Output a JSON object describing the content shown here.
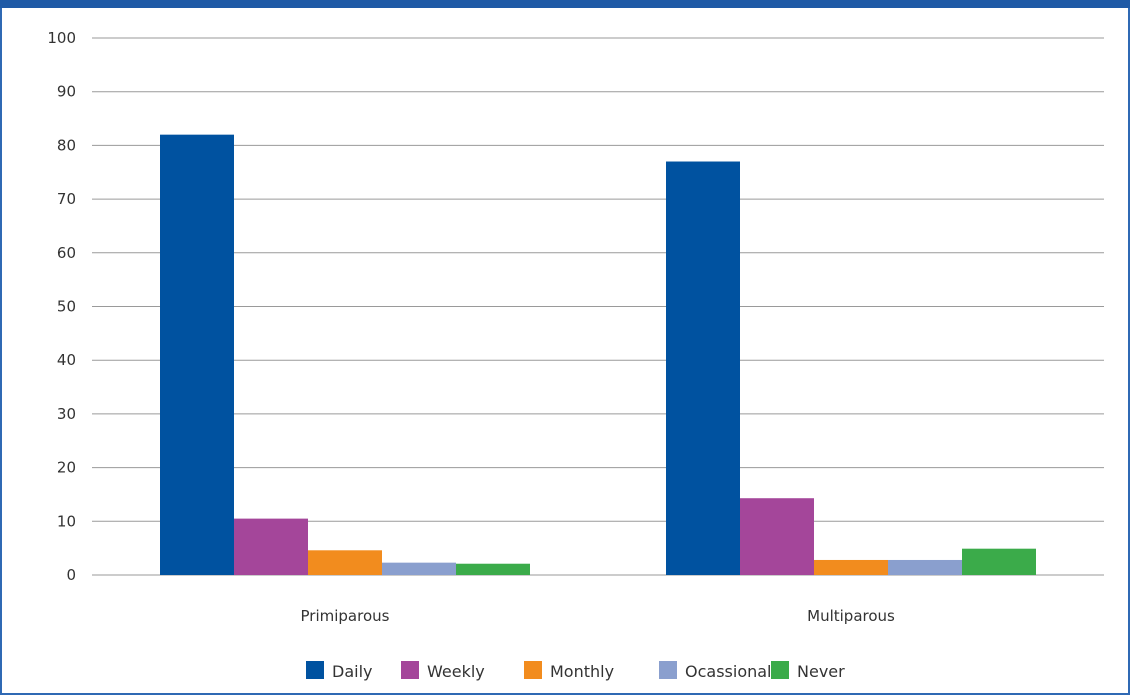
{
  "chart_data": {
    "type": "bar",
    "categories": [
      "Primiparous",
      "Multiparous"
    ],
    "series": [
      {
        "name": "Daily",
        "color": "#0052a0",
        "values": [
          82,
          77
        ]
      },
      {
        "name": "Weekly",
        "color": "#a4469a",
        "values": [
          10.5,
          14.3
        ]
      },
      {
        "name": "Monthly",
        "color": "#f28c1e",
        "values": [
          4.6,
          2.8
        ]
      },
      {
        "name": "Ocassional",
        "color": "#8a9fce",
        "values": [
          2.3,
          2.8
        ]
      },
      {
        "name": "Never",
        "color": "#3bab4a",
        "values": [
          2.1,
          4.9
        ]
      }
    ],
    "yticks": [
      0,
      10,
      20,
      30,
      40,
      50,
      60,
      70,
      80,
      90,
      100
    ],
    "ylim": [
      0,
      100
    ],
    "grid": true,
    "legend_position": "bottom"
  }
}
